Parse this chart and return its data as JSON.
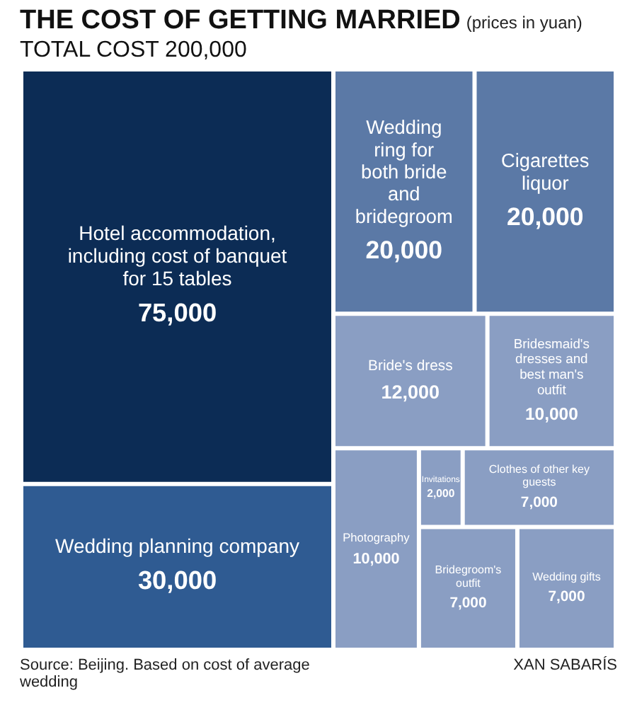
{
  "chart_data": {
    "type": "other",
    "title": "THE COST OF GETTING MARRIED",
    "subtitle": "(prices in yuan)",
    "annotations": [
      "TOTAL COST 200,000",
      "Source: Beijing. Based on cost of average wedding",
      "XAN SABARÍS"
    ],
    "categories": [
      "Hotel accommodation, including cost of banquet for 15 tables",
      "Wedding planning company",
      "Wedding ring for both bride and bridegroom",
      "Cigarettes liquor",
      "Bride's dress",
      "Bridesmaid's dresses and best man's outfit",
      "Photography",
      "Invitations",
      "Clothes of other key guests",
      "Bridegroom's outfit",
      "Wedding gifts"
    ],
    "values": [
      75000,
      30000,
      20000,
      20000,
      12000,
      10000,
      10000,
      2000,
      7000,
      7000,
      7000
    ],
    "colors": [
      "#0c2c55",
      "#2f5b92",
      "#5b79a6",
      "#5b79a6",
      "#8a9ec3",
      "#8a9ec3",
      "#8a9ec3",
      "#8a9ec3",
      "#8a9ec3",
      "#8a9ec3",
      "#8a9ec3"
    ],
    "value_labels": [
      "75,000",
      "30,000",
      "20,000",
      "20,000",
      "12,000",
      "10,000",
      "10,000",
      "2,000",
      "7,000",
      "7,000",
      "7,000"
    ]
  }
}
